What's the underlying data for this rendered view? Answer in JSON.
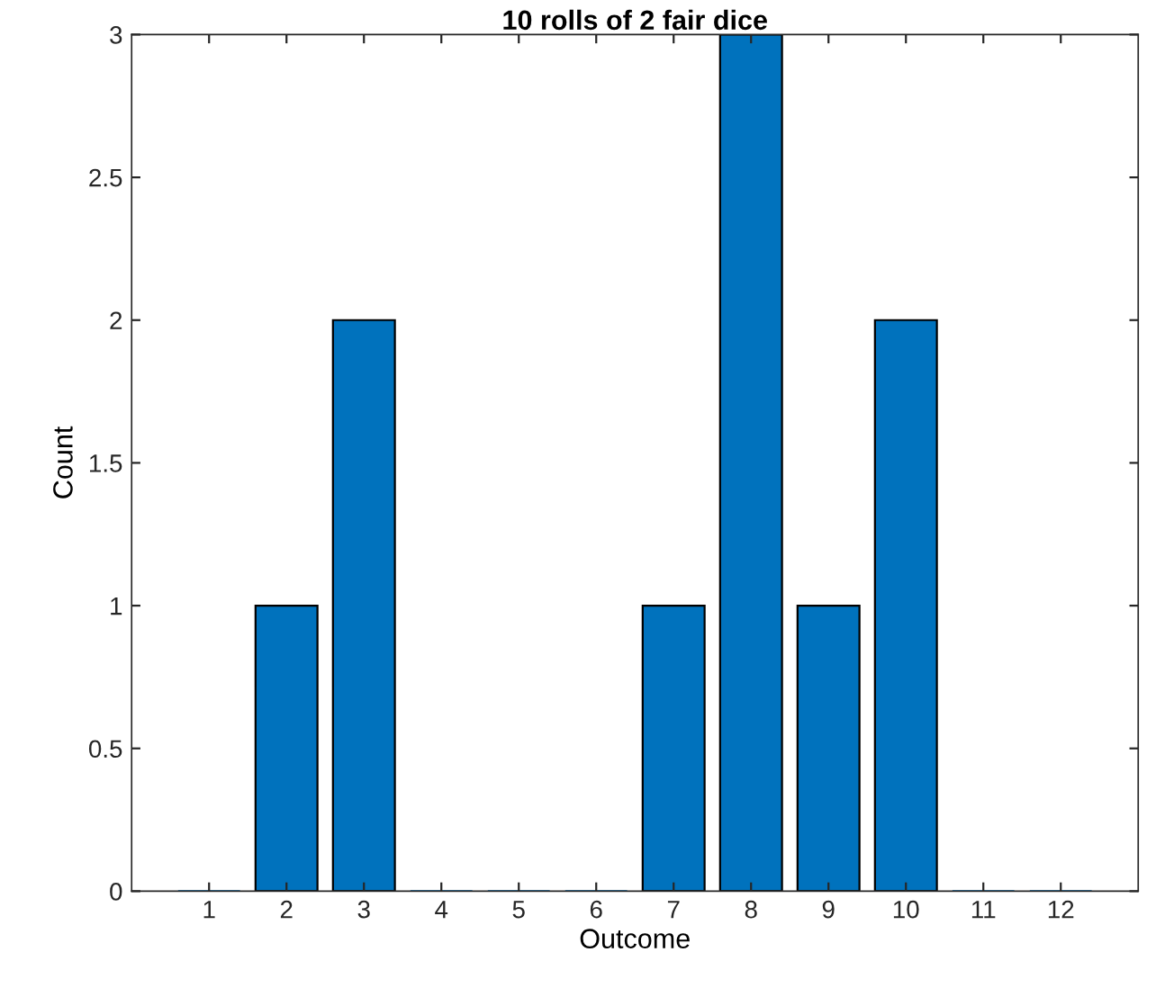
{
  "chart_data": {
    "type": "bar",
    "title": "10 rolls of 2 fair dice",
    "xlabel": "Outcome",
    "ylabel": "Count",
    "x": [
      1,
      2,
      3,
      4,
      5,
      6,
      7,
      8,
      9,
      10,
      11,
      12
    ],
    "values": [
      0,
      1,
      2,
      0,
      0,
      0,
      1,
      3,
      1,
      2,
      0,
      0
    ],
    "color": "#0072bd",
    "xlim": [
      0,
      13
    ],
    "xticks": [
      1,
      2,
      3,
      4,
      5,
      6,
      7,
      8,
      9,
      10,
      11,
      12
    ],
    "ylim": [
      0,
      3
    ],
    "yticks": [
      0,
      0.5,
      1,
      1.5,
      2,
      2.5,
      3
    ],
    "grid": false,
    "legend": false
  }
}
